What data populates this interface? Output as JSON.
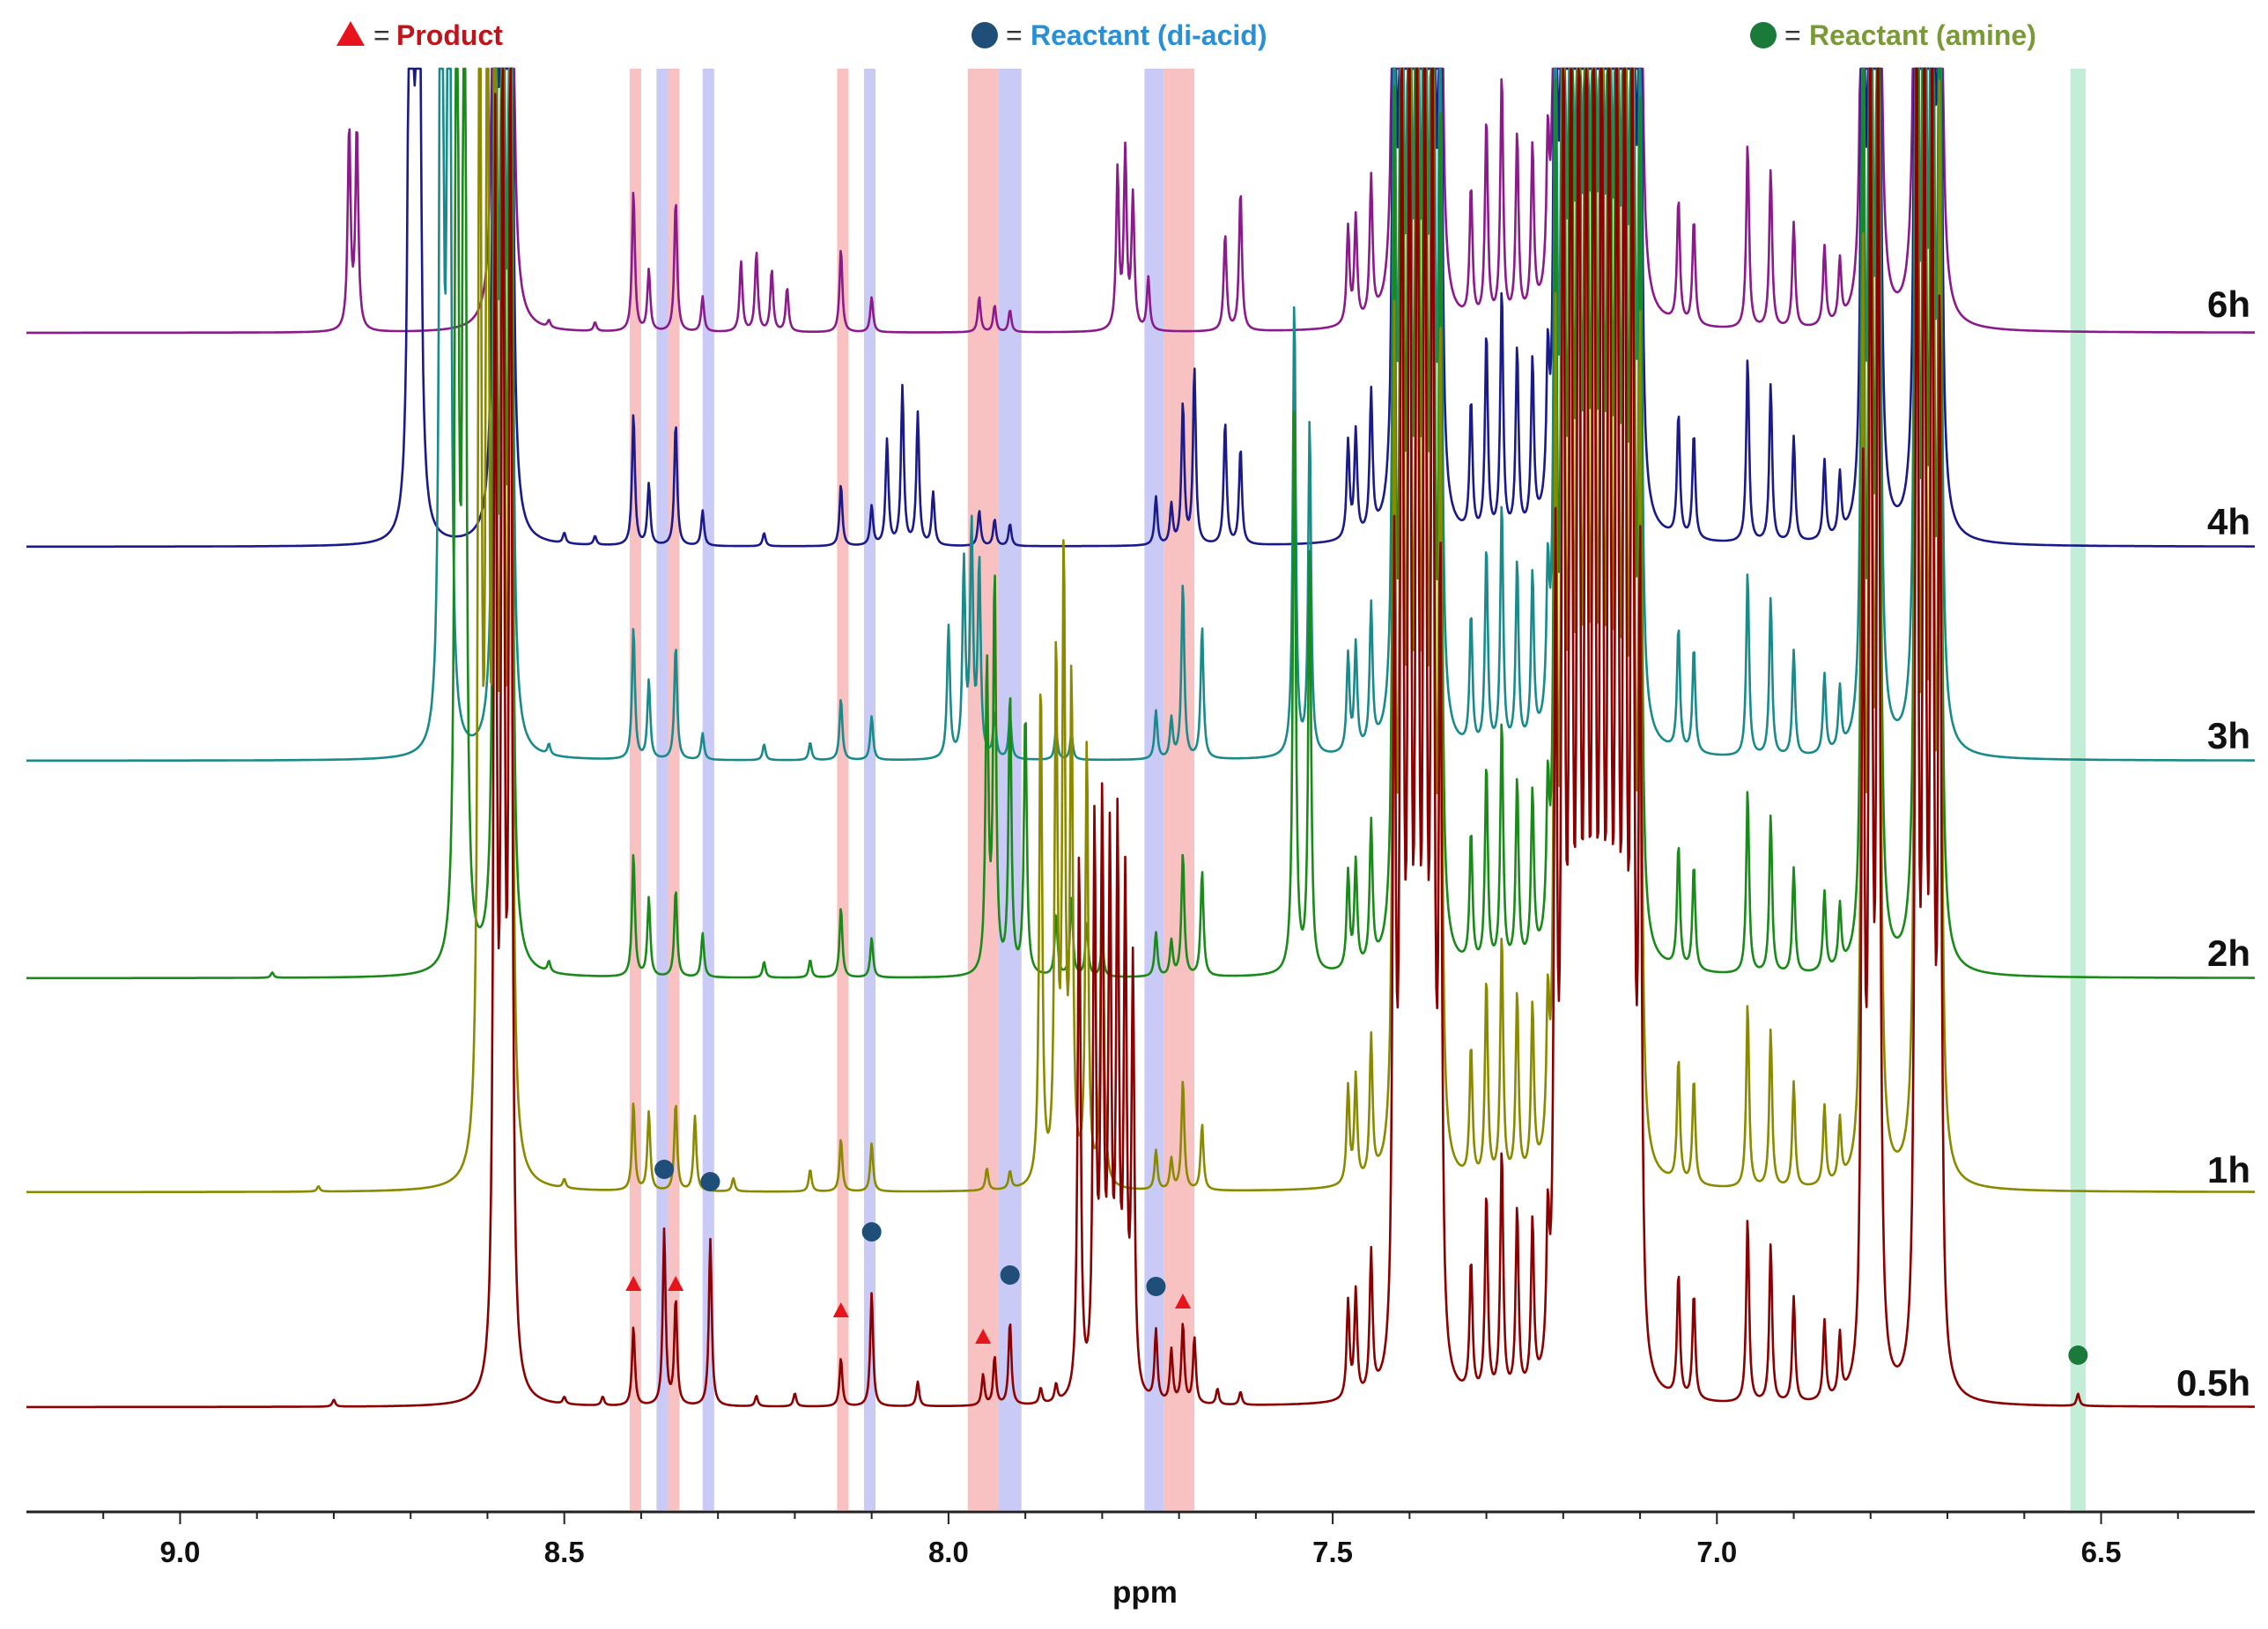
{
  "chart_data": {
    "type": "line",
    "title": "",
    "xlabel": "ppm",
    "ylabel": "",
    "xlim": [
      9.2,
      6.3
    ],
    "x_ticks": [
      {
        "value": 9.0,
        "label": "9.0"
      },
      {
        "value": 8.5,
        "label": "8.5"
      },
      {
        "value": 8.0,
        "label": "8.0"
      },
      {
        "value": 7.5,
        "label": "7.5"
      },
      {
        "value": 7.0,
        "label": "7.0"
      },
      {
        "value": 6.5,
        "label": "6.5"
      }
    ],
    "legend": [
      {
        "symbol": "triangle",
        "color": "#e8141c",
        "text_color": "#c0141c",
        "eq": "=",
        "label": "Product"
      },
      {
        "symbol": "circle",
        "color": "#1f4e79",
        "text_color": "#2a8fd4",
        "eq": "=",
        "label": "Reactant (di-acid)"
      },
      {
        "symbol": "circle",
        "color": "#1a7a3a",
        "text_color": "#7a9a3a",
        "eq": "=",
        "label": "Reactant (amine)"
      }
    ],
    "highlight_bands": [
      {
        "type": "product",
        "color": "#f7a8a8",
        "from": 8.415,
        "to": 8.4
      },
      {
        "type": "diacid",
        "color": "#b3b3f2",
        "from": 8.38,
        "to": 8.365
      },
      {
        "type": "product",
        "color": "#f7a8a8",
        "from": 8.365,
        "to": 8.35
      },
      {
        "type": "diacid",
        "color": "#b3b3f2",
        "from": 8.32,
        "to": 8.305
      },
      {
        "type": "product",
        "color": "#f7a8a8",
        "from": 8.145,
        "to": 8.13
      },
      {
        "type": "diacid",
        "color": "#b3b3f2",
        "from": 8.11,
        "to": 8.095
      },
      {
        "type": "product",
        "color": "#f7a8a8",
        "from": 7.975,
        "to": 7.935
      },
      {
        "type": "diacid",
        "color": "#b3b3f2",
        "from": 7.935,
        "to": 7.905
      },
      {
        "type": "diacid",
        "color": "#b3b3f2",
        "from": 7.745,
        "to": 7.72
      },
      {
        "type": "product",
        "color": "#f7a8a8",
        "from": 7.72,
        "to": 7.68
      },
      {
        "type": "amine",
        "color": "#a8e6c4",
        "from": 6.54,
        "to": 6.52
      }
    ],
    "series": [
      {
        "name": "0.5h",
        "label": "0.5h",
        "color": "#8b0000"
      },
      {
        "name": "1h",
        "label": "1h",
        "color": "#8a8a00"
      },
      {
        "name": "2h",
        "label": "2h",
        "color": "#1a8a1a"
      },
      {
        "name": "3h",
        "label": "3h",
        "color": "#1a8a8a"
      },
      {
        "name": "4h",
        "label": "4h",
        "color": "#1a1a8a"
      },
      {
        "name": "6h",
        "label": "6h",
        "color": "#8b1a8b"
      }
    ],
    "markers_0_5h": [
      {
        "type": "product",
        "ppm": 8.41
      },
      {
        "type": "diacid",
        "ppm": 8.37
      },
      {
        "type": "product",
        "ppm": 8.355
      },
      {
        "type": "diacid",
        "ppm": 8.31
      },
      {
        "type": "product",
        "ppm": 8.14
      },
      {
        "type": "diacid",
        "ppm": 8.1
      },
      {
        "type": "product",
        "ppm": 7.955
      },
      {
        "type": "diacid",
        "ppm": 7.92
      },
      {
        "type": "diacid",
        "ppm": 7.73
      },
      {
        "type": "product",
        "ppm": 7.695
      },
      {
        "type": "amine",
        "ppm": 6.53
      }
    ]
  }
}
